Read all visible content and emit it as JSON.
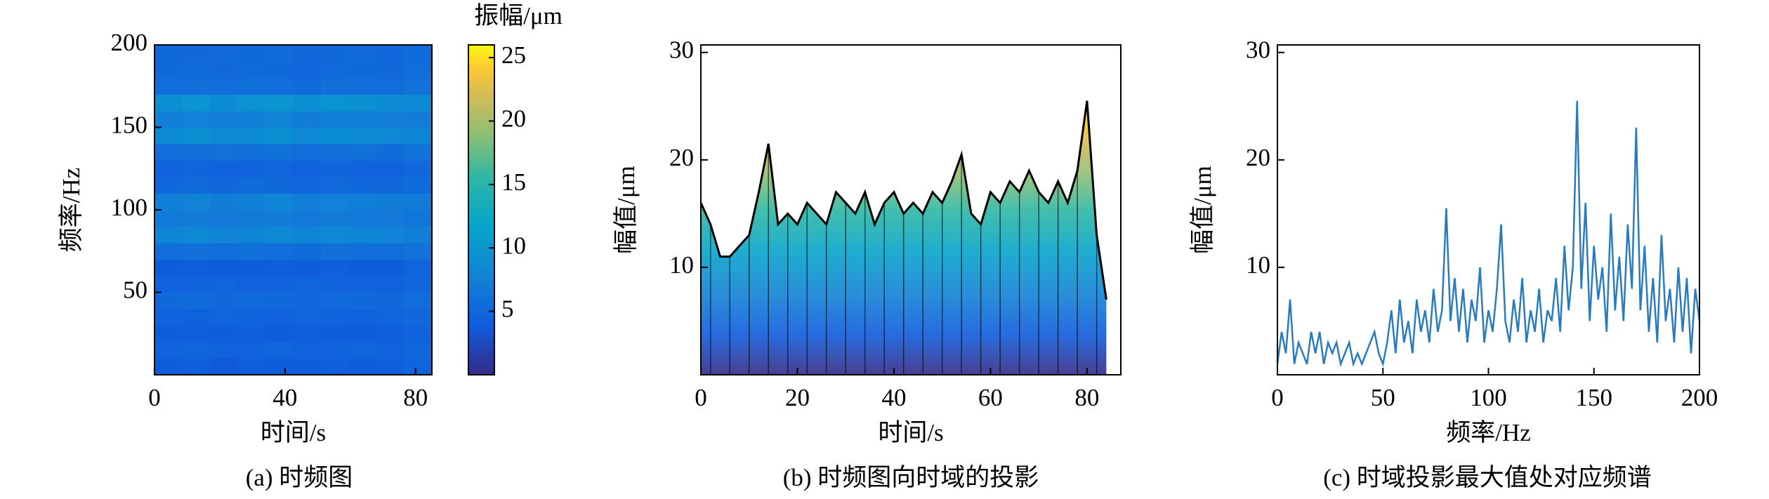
{
  "chart_data": [
    {
      "type": "heatmap",
      "caption": "(a) 时频图",
      "x_label": "时间/s",
      "y_label": "频率/Hz",
      "colorbar_label": "振幅/μm",
      "xlim": [
        0,
        85
      ],
      "ylim": [
        0,
        200
      ],
      "xticks": [
        0,
        40,
        80
      ],
      "yticks": [
        50,
        100,
        150,
        200
      ],
      "xbins": [
        0,
        8.5,
        17,
        25.5,
        34,
        42.5,
        51,
        59.5,
        68,
        76.5,
        85
      ],
      "ybins": [
        0,
        10,
        20,
        30,
        40,
        50,
        60,
        70,
        80,
        90,
        100,
        110,
        120,
        130,
        140,
        150,
        160,
        170,
        180,
        190,
        200
      ],
      "values": [
        [
          3.0,
          3.2,
          2.8,
          3.1,
          3.0,
          2.9,
          3.2,
          3.0,
          3.1,
          3.6
        ],
        [
          3.5,
          3.6,
          3.3,
          3.5,
          3.7,
          3.4,
          3.5,
          3.6,
          3.4,
          4.0
        ],
        [
          3.0,
          3.1,
          2.9,
          3.2,
          3.0,
          3.1,
          2.9,
          3.0,
          3.2,
          3.5
        ],
        [
          3.5,
          3.4,
          3.6,
          3.5,
          3.3,
          3.6,
          3.5,
          3.4,
          3.6,
          3.9
        ],
        [
          4.0,
          4.2,
          3.9,
          4.1,
          4.0,
          3.8,
          4.1,
          4.0,
          3.9,
          4.4
        ],
        [
          3.5,
          3.4,
          3.6,
          3.3,
          3.5,
          3.6,
          3.4,
          3.5,
          3.3,
          3.8
        ],
        [
          3.0,
          3.1,
          3.0,
          2.9,
          3.1,
          3.0,
          3.2,
          2.9,
          3.0,
          3.6
        ],
        [
          4.5,
          4.6,
          4.4,
          4.7,
          4.5,
          4.3,
          4.6,
          4.5,
          4.4,
          4.9
        ],
        [
          6.5,
          6.8,
          6.3,
          6.6,
          6.9,
          6.4,
          6.7,
          6.5,
          6.2,
          6.0
        ],
        [
          5.5,
          5.7,
          5.4,
          5.6,
          5.8,
          5.3,
          5.6,
          5.5,
          5.4,
          5.2
        ],
        [
          6.0,
          6.3,
          5.8,
          6.1,
          6.4,
          5.9,
          6.2,
          6.0,
          5.8,
          5.6
        ],
        [
          4.0,
          4.1,
          3.9,
          4.2,
          4.0,
          3.8,
          4.1,
          4.0,
          3.9,
          4.3
        ],
        [
          3.5,
          3.6,
          3.4,
          3.5,
          3.7,
          3.4,
          3.6,
          3.5,
          3.3,
          3.9
        ],
        [
          4.5,
          4.4,
          4.6,
          4.5,
          4.7,
          4.4,
          4.5,
          4.6,
          4.3,
          4.8
        ],
        [
          7.0,
          7.4,
          6.8,
          7.2,
          7.5,
          6.9,
          7.3,
          7.1,
          6.8,
          6.5
        ],
        [
          6.0,
          6.2,
          5.9,
          6.1,
          6.3,
          5.8,
          6.1,
          6.0,
          5.9,
          5.7
        ],
        [
          7.5,
          7.9,
          7.3,
          7.7,
          8.0,
          7.4,
          7.8,
          7.6,
          7.2,
          7.0
        ],
        [
          4.5,
          4.6,
          4.4,
          4.7,
          4.5,
          4.3,
          4.6,
          4.5,
          4.4,
          4.8
        ],
        [
          4.0,
          4.2,
          3.9,
          4.1,
          4.0,
          3.8,
          4.1,
          4.0,
          3.9,
          4.4
        ],
        [
          4.0,
          3.9,
          4.1,
          4.0,
          4.2,
          3.9,
          4.0,
          4.1,
          3.8,
          4.3
        ]
      ],
      "colormap": "parula",
      "clim": [
        0,
        26
      ],
      "cticks": [
        5,
        10,
        15,
        20,
        25
      ]
    },
    {
      "type": "area",
      "caption": "(b) 时频图向时域的投影",
      "x_label": "时间/s",
      "y_label": "幅值/μm",
      "xlim": [
        0,
        87
      ],
      "ylim": [
        0,
        30.7
      ],
      "xticks": [
        0,
        20,
        40,
        60,
        80
      ],
      "yticks": [
        10,
        20,
        30
      ],
      "x": [
        0,
        2,
        4,
        6,
        8,
        10,
        12,
        14,
        16,
        18,
        20,
        22,
        24,
        26,
        28,
        30,
        32,
        34,
        36,
        38,
        40,
        42,
        44,
        46,
        48,
        50,
        52,
        54,
        56,
        58,
        60,
        62,
        64,
        66,
        68,
        70,
        72,
        74,
        76,
        78,
        80,
        82,
        84
      ],
      "values": [
        16,
        14,
        11,
        11,
        12,
        13,
        17,
        21.5,
        14,
        15,
        14,
        16,
        15,
        14,
        17,
        16,
        15,
        17,
        14,
        16,
        17,
        15,
        16,
        15,
        17,
        16,
        18,
        20.5,
        15,
        14,
        17,
        16,
        18,
        17,
        19,
        17,
        16,
        18,
        16,
        19,
        25.5,
        13,
        7
      ],
      "color": "#000000",
      "colormap": "parula"
    },
    {
      "type": "line",
      "caption": "(c) 时域投影最大值处对应频谱",
      "x_label": "频率/Hz",
      "y_label": "幅值/μm",
      "xlim": [
        0,
        200
      ],
      "ylim": [
        0,
        30.7
      ],
      "xticks": [
        0,
        50,
        100,
        150,
        200
      ],
      "yticks": [
        10,
        20,
        30
      ],
      "x": [
        0,
        2,
        4,
        6,
        8,
        10,
        12,
        14,
        16,
        18,
        20,
        22,
        24,
        26,
        28,
        30,
        32,
        34,
        36,
        38,
        40,
        42,
        44,
        46,
        48,
        50,
        52,
        54,
        56,
        58,
        60,
        62,
        64,
        66,
        68,
        70,
        72,
        74,
        76,
        78,
        80,
        82,
        84,
        86,
        88,
        90,
        92,
        94,
        96,
        98,
        100,
        102,
        104,
        106,
        108,
        110,
        112,
        114,
        116,
        118,
        120,
        122,
        124,
        126,
        128,
        130,
        132,
        134,
        136,
        138,
        140,
        142,
        144,
        146,
        148,
        150,
        152,
        154,
        156,
        158,
        160,
        162,
        164,
        166,
        168,
        170,
        172,
        174,
        176,
        178,
        180,
        182,
        184,
        186,
        188,
        190,
        192,
        194,
        196,
        198,
        200
      ],
      "values": [
        1,
        4,
        2,
        7,
        1,
        3,
        2,
        1,
        4,
        2,
        4,
        1,
        3,
        2,
        3,
        1,
        2,
        3,
        1,
        2,
        1,
        2,
        3,
        4,
        2,
        1,
        3,
        6,
        2,
        7,
        3,
        5,
        2,
        7,
        4,
        6,
        3,
        8,
        4,
        6,
        15.5,
        5,
        9,
        4,
        8,
        3,
        7,
        5,
        10,
        3,
        6,
        4,
        8,
        14,
        5,
        3,
        7,
        4,
        9,
        3,
        6,
        4,
        8,
        3,
        6,
        5,
        9,
        4,
        12,
        6,
        10,
        25.5,
        8,
        16,
        5,
        12,
        7,
        10,
        4,
        15,
        6,
        11,
        5,
        14,
        8,
        23,
        6,
        12,
        4,
        9,
        3,
        13,
        5,
        8,
        3,
        10,
        4,
        9,
        2,
        8,
        5
      ],
      "color": "#2a7bbd"
    }
  ]
}
